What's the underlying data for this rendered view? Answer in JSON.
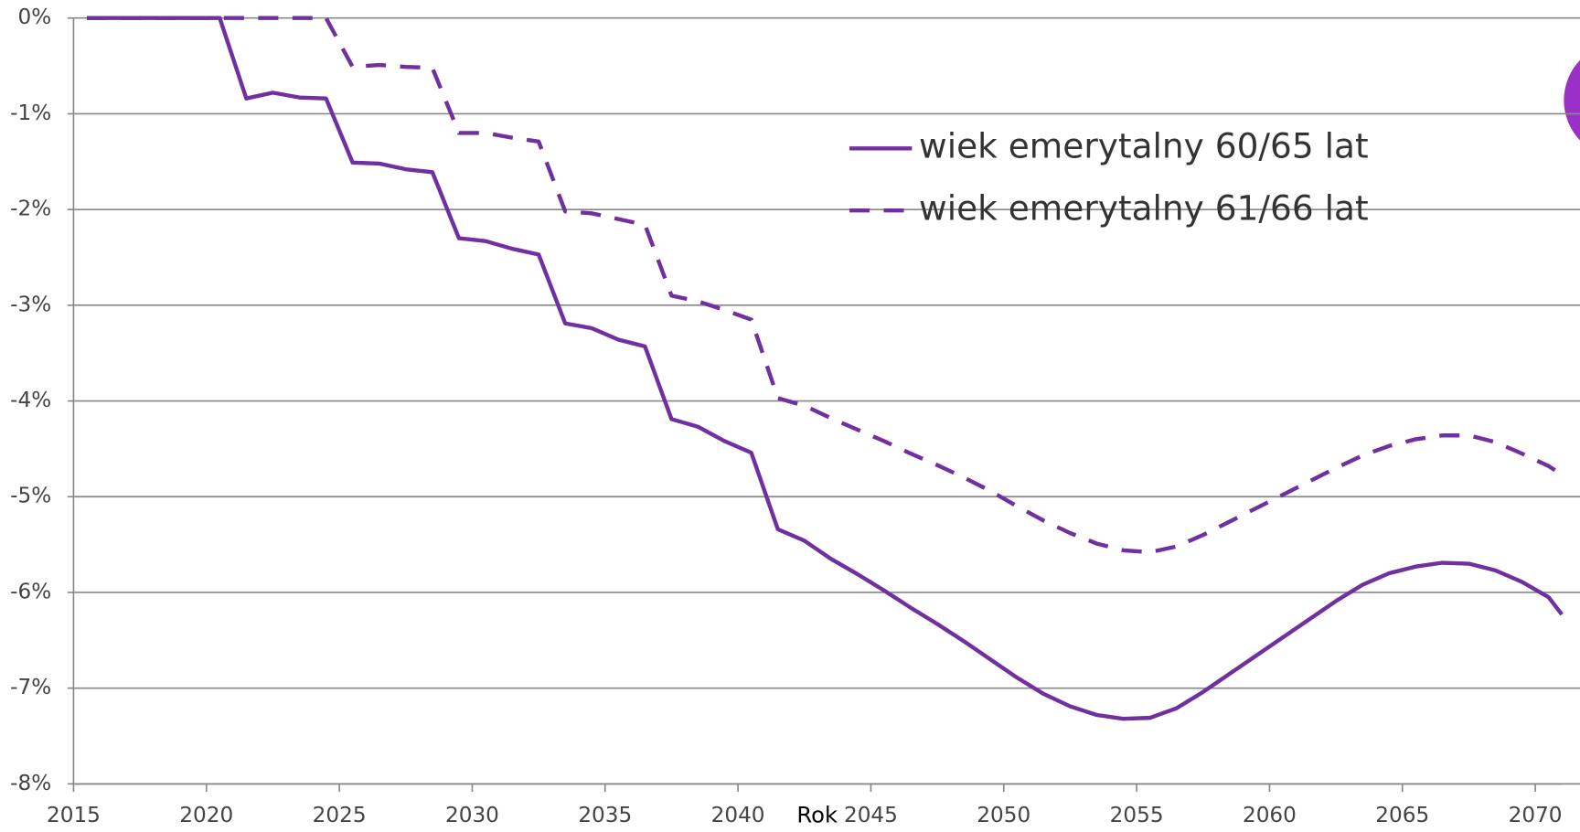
{
  "chart_data": {
    "type": "line",
    "x_label": "Rok",
    "x": [
      2015.5,
      2016.5,
      2017.5,
      2018.5,
      2019.5,
      2020.5,
      2021.5,
      2022.5,
      2023.5,
      2024.5,
      2025.5,
      2026.5,
      2027.5,
      2028.5,
      2029.5,
      2030.5,
      2031.5,
      2032.5,
      2033.5,
      2034.5,
      2035.5,
      2036.5,
      2037.5,
      2038.5,
      2039.5,
      2040.5,
      2041.5,
      2042.5,
      2043.5,
      2044.5,
      2045.5,
      2046.5,
      2047.5,
      2048.5,
      2049.5,
      2050.5,
      2051.5,
      2052.5,
      2053.5,
      2054.5,
      2055.5,
      2056.5,
      2057.5,
      2058.5,
      2059.5,
      2060.5,
      2061.5,
      2062.5,
      2063.5,
      2064.5,
      2065.5,
      2066.5,
      2067.5,
      2068.5,
      2069.5,
      2070.5,
      2071
    ],
    "series": [
      {
        "name": "wiek emerytalny 60/65 lat",
        "color": "#7030a0",
        "dash": false,
        "values": [
          0,
          0,
          0,
          0,
          0,
          0,
          -0.84,
          -0.78,
          -0.83,
          -0.84,
          -1.51,
          -1.52,
          -1.58,
          -1.61,
          -2.3,
          -2.33,
          -2.41,
          -2.47,
          -3.19,
          -3.24,
          -3.36,
          -3.43,
          -4.19,
          -4.27,
          -4.42,
          -4.54,
          -5.34,
          -5.46,
          -5.65,
          -5.81,
          -5.98,
          -6.16,
          -6.33,
          -6.51,
          -6.7,
          -6.89,
          -7.06,
          -7.19,
          -7.28,
          -7.32,
          -7.31,
          -7.21,
          -7.04,
          -6.85,
          -6.66,
          -6.47,
          -6.28,
          -6.09,
          -5.92,
          -5.8,
          -5.73,
          -5.69,
          -5.7,
          -5.77,
          -5.89,
          -6.05,
          -6.23
        ]
      },
      {
        "name": "wiek emerytalny 61/66 lat",
        "color": "#7030a0",
        "dash": true,
        "values": [
          0,
          0,
          0,
          0,
          0,
          0,
          0,
          0,
          0,
          0,
          -0.51,
          -0.49,
          -0.51,
          -0.52,
          -1.2,
          -1.2,
          -1.25,
          -1.29,
          -2.02,
          -2.04,
          -2.1,
          -2.16,
          -2.9,
          -2.96,
          -3.05,
          -3.15,
          -3.97,
          -4.05,
          -4.18,
          -4.3,
          -4.42,
          -4.55,
          -4.67,
          -4.8,
          -4.94,
          -5.1,
          -5.25,
          -5.38,
          -5.49,
          -5.56,
          -5.58,
          -5.52,
          -5.4,
          -5.26,
          -5.12,
          -4.98,
          -4.84,
          -4.7,
          -4.57,
          -4.47,
          -4.4,
          -4.36,
          -4.36,
          -4.43,
          -4.55,
          -4.68,
          -4.77
        ]
      }
    ],
    "xlim": [
      2015,
      2071
    ],
    "xticks": [
      2015,
      2020,
      2025,
      2030,
      2035,
      2040,
      2045,
      2050,
      2055,
      2060,
      2065,
      2070
    ],
    "ylim": [
      -8,
      0
    ],
    "yticks": [
      {
        "value": 0,
        "label": "0%"
      },
      {
        "value": -1,
        "label": "-1%"
      },
      {
        "value": -2,
        "label": "-2%"
      },
      {
        "value": -3,
        "label": "-3%"
      },
      {
        "value": -4,
        "label": "-4%"
      },
      {
        "value": -5,
        "label": "-5%"
      },
      {
        "value": -6,
        "label": "-6%"
      },
      {
        "value": -7,
        "label": "-7%"
      },
      {
        "value": -8,
        "label": "-8%"
      }
    ],
    "grid": true
  }
}
